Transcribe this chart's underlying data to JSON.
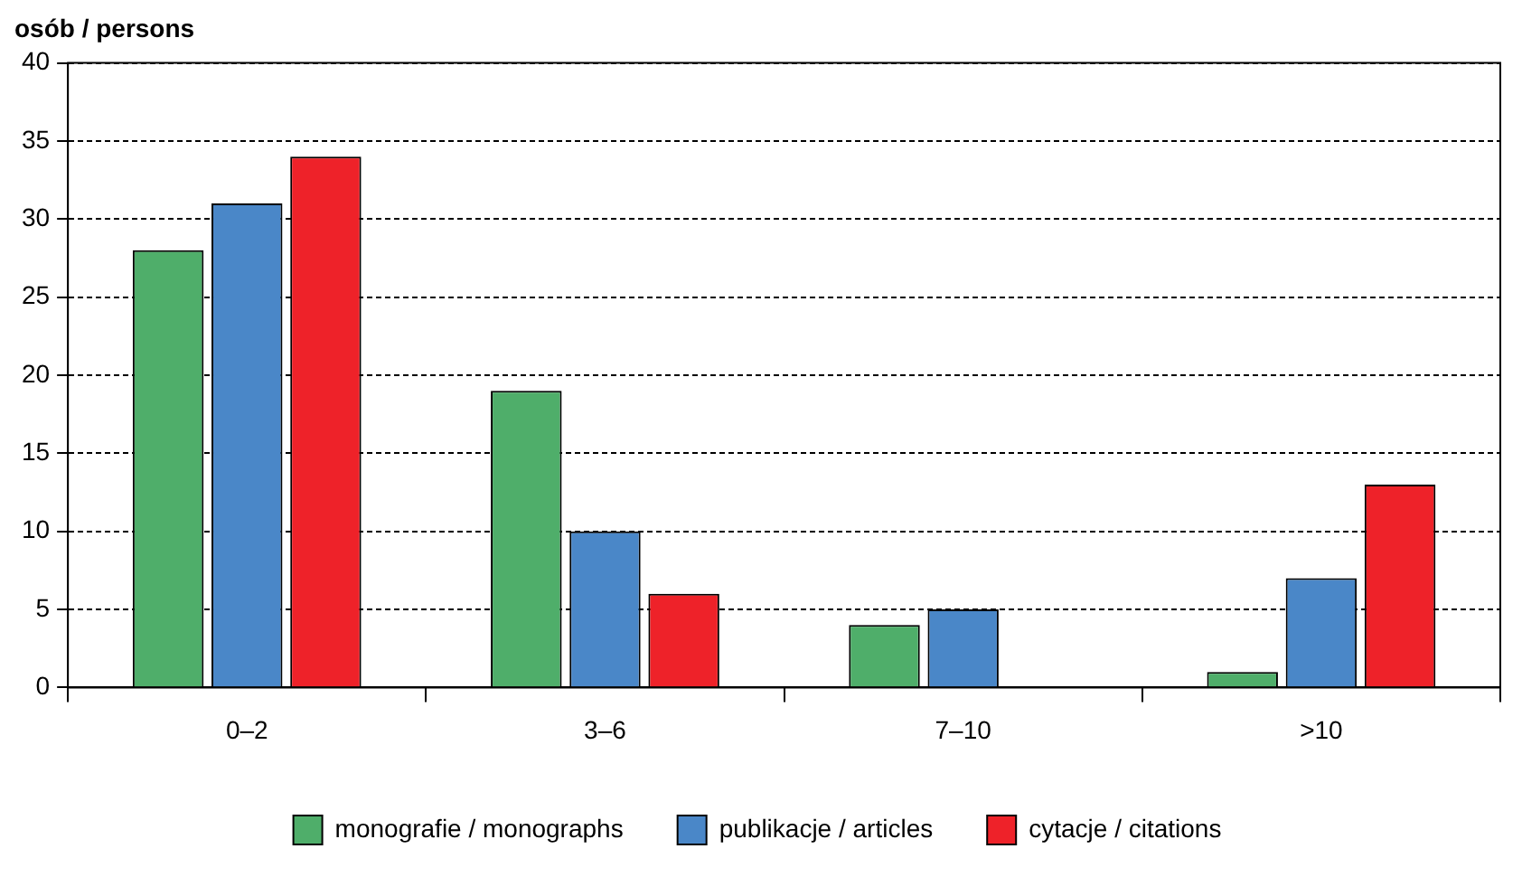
{
  "chart_data": {
    "type": "bar",
    "ylabel": "osób / persons",
    "categories": [
      "0–2",
      "3–6",
      "7–10",
      ">10"
    ],
    "series": [
      {
        "name": "monografie / monographs",
        "color": "#4fae6a",
        "values": [
          28,
          19,
          4,
          1
        ]
      },
      {
        "name": "publikacje / articles",
        "color": "#4a87c8",
        "values": [
          31,
          10,
          5,
          7
        ]
      },
      {
        "name": "cytacje / citations",
        "color": "#ee2229",
        "values": [
          34,
          6,
          0,
          13
        ]
      }
    ],
    "ylim": [
      0,
      40
    ],
    "yticks": [
      0,
      5,
      10,
      15,
      20,
      25,
      30,
      35,
      40
    ],
    "grid": "y",
    "legend": "bottom"
  }
}
